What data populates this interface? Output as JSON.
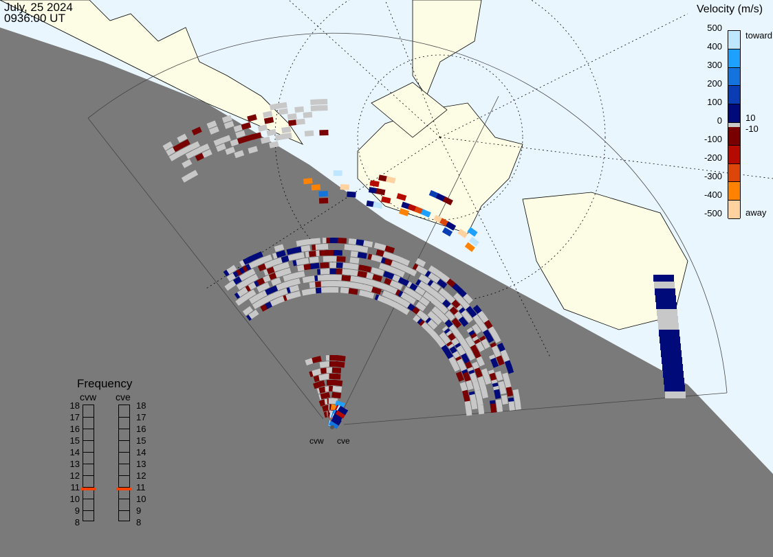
{
  "header": {
    "date": "July, 25 2024",
    "time": "0936:00 UT"
  },
  "velocity_scale": {
    "title": "Velocity (m/s)",
    "ticks": [
      "500",
      "400",
      "300",
      "200",
      "100",
      "0",
      "-100",
      "-200",
      "-300",
      "-400",
      "-500"
    ],
    "toward_label": "toward",
    "away_label": "away",
    "ground_scatter_upper": "10",
    "ground_scatter_lower": "-10",
    "colors": [
      "#bfe6ff",
      "#1ea0ff",
      "#1473dc",
      "#0a3cb4",
      "#000a78",
      "#780000",
      "#b40a00",
      "#dc460a",
      "#ff8200",
      "#ffd2a0"
    ]
  },
  "frequency": {
    "title": "Frequency",
    "unit_ticks": [
      "18",
      "17",
      "16",
      "15",
      "14",
      "13",
      "12",
      "11",
      "10",
      "9",
      "8"
    ],
    "radars": [
      {
        "name": "cvw",
        "frequency_mhz": 10.8
      },
      {
        "name": "cve",
        "frequency_mhz": 10.8
      }
    ],
    "marker_color": "#ff4000"
  },
  "sites": [
    {
      "name": "cvw"
    },
    {
      "name": "cve"
    }
  ],
  "colors": {
    "night": "#7a7a7a",
    "ocean_day": "#eaf6fe",
    "land_day": "#fdfde6",
    "ground_scatter": "#c8c8c8"
  }
}
